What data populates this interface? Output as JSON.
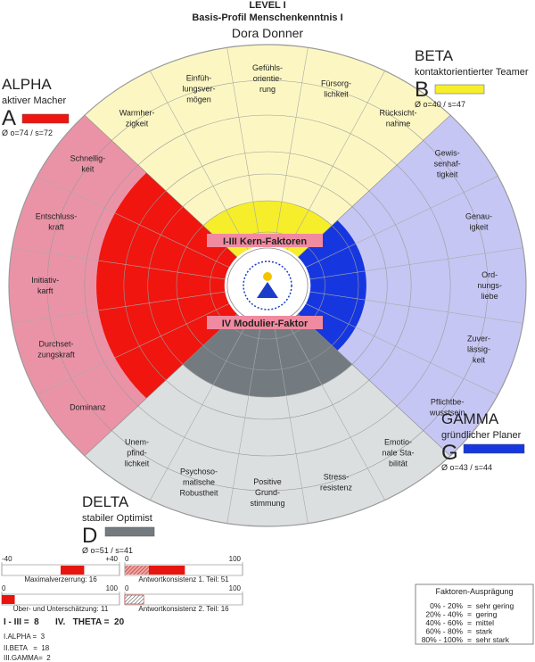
{
  "header": {
    "level": "LEVEL I",
    "title": "Basis-Profil Menschenkenntnis I",
    "name": "Dora Donner"
  },
  "quadrants": [
    {
      "name": "ALPHA",
      "subtitle": "aktiver Macher",
      "letter": "A",
      "stats": "Ø o=74 / s=72",
      "score": 74,
      "color": "#f0150f",
      "pale": "#ea93a7",
      "sectors": [
        [
          "Schnellig-",
          "keit"
        ],
        [
          "Entschluss-",
          "kraft"
        ],
        [
          "Initiativ-",
          "karft"
        ],
        [
          "Durchset-",
          "zungskraft"
        ],
        [
          "Dominanz"
        ]
      ]
    },
    {
      "name": "BETA",
      "subtitle": "kontaktorientierter Teamer",
      "letter": "B",
      "stats": "Ø o=40 / s=47",
      "score": 40,
      "color": "#f6ee2a",
      "pale": "#fcf7c2",
      "sectors": [
        [
          "Warmher-",
          "zigkeit"
        ],
        [
          "Einfüh-",
          "lungsver-",
          "mögen"
        ],
        [
          "Gefühls-",
          "orientie-",
          "rung"
        ],
        [
          "Fürsorg-",
          "lichkeit"
        ],
        [
          "Rücksicht-",
          "nahme"
        ]
      ]
    },
    {
      "name": "GAMMA",
      "subtitle": "gründlicher Planer",
      "letter": "G",
      "stats": "Ø o=43 / s=44",
      "score": 43,
      "color": "#1637e0",
      "pale": "#c6c6f4",
      "sectors": [
        [
          "Gewis-",
          "senhaf-",
          "tigkeit"
        ],
        [
          "Genau-",
          "igkeit"
        ],
        [
          "Ord-",
          "nungs-",
          "liebe"
        ],
        [
          "Zuver-",
          "lässig-",
          "keit"
        ],
        [
          "Pflichtbe-",
          "wusstsein"
        ]
      ]
    },
    {
      "name": "DELTA",
      "subtitle": "stabiler Optimist",
      "letter": "D",
      "stats": "Ø o=51 / s=41",
      "score": 51,
      "color": "#737b80",
      "pale": "#dcdfe0",
      "sectors": [
        [
          "Emotio-",
          "nale Sta-",
          "bilität"
        ],
        [
          "Stress-",
          "resistenz"
        ],
        [
          "Positive",
          "Grund-",
          "stimmung"
        ],
        [
          "Psychoso-",
          "matische",
          "Robustheit"
        ],
        [
          "Unem-",
          "pfind-",
          "lichkeit"
        ]
      ]
    }
  ],
  "center": {
    "core": "I-III Kern-Faktoren",
    "modifier": "IV Modulier-Faktor"
  },
  "scales": [
    {
      "caption": "Maximalverzerrung: 16",
      "value": 16,
      "ticks": [
        -40,
        {
          "value": 40,
          "label": "+40"
        }
      ]
    },
    {
      "caption": "Über- und Unterschätzung: 11",
      "value": 11,
      "ticks": [
        0,
        100
      ]
    },
    {
      "caption": "Antwortkonsistenz 1. Teil: 51",
      "value": 51,
      "ticks": [
        0,
        100
      ]
    },
    {
      "caption": "Antwortkonsistenz 2. Teil: 16",
      "value": 16,
      "ticks": [
        0,
        100
      ]
    }
  ],
  "summary": [
    "I - III =  8",
    "IV.   THETA =  20",
    "I.ALPHA =  3",
    "II.BETA   =  18",
    "III.GAMMA=  2"
  ],
  "key": {
    "title": "Faktoren-Ausprägung",
    "rows": [
      [
        "0% - 20%",
        "=  sehr gering"
      ],
      [
        "20% - 40%",
        "=  gering"
      ],
      [
        "40% - 60%",
        "=  mittel"
      ],
      [
        "60% - 80%",
        "=  stark"
      ],
      [
        "80% - 100%",
        "=  sehr stark"
      ]
    ]
  }
}
